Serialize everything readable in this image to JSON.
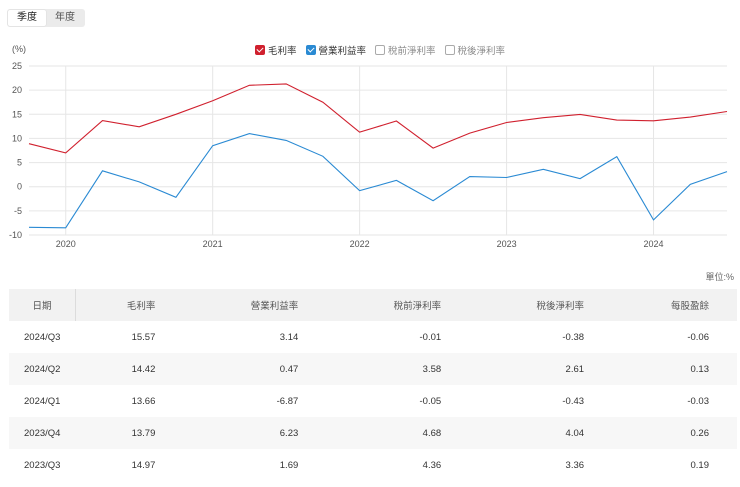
{
  "tabs": [
    {
      "label": "季度",
      "active": true
    },
    {
      "label": "年度",
      "active": false
    }
  ],
  "chart_unit": "(%)",
  "legend": [
    {
      "label": "毛利率",
      "checked": true,
      "color": "#d0202e"
    },
    {
      "label": "營業利益率",
      "checked": true,
      "color": "#2a8ad3"
    },
    {
      "label": "稅前淨利率",
      "checked": false,
      "color": "#aaaaaa"
    },
    {
      "label": "稅後淨利率",
      "checked": false,
      "color": "#aaaaaa"
    }
  ],
  "chart_data": {
    "type": "line",
    "x_ticks": [
      "2020",
      "2021",
      "2022",
      "2023",
      "2024"
    ],
    "x": [
      "2019/Q4",
      "2020/Q1",
      "2020/Q2",
      "2020/Q3",
      "2020/Q4",
      "2021/Q1",
      "2021/Q2",
      "2021/Q3",
      "2021/Q4",
      "2022/Q1",
      "2022/Q2",
      "2022/Q3",
      "2022/Q4",
      "2023/Q1",
      "2023/Q2",
      "2023/Q3",
      "2023/Q4",
      "2024/Q1",
      "2024/Q2",
      "2024/Q3"
    ],
    "ylim": [
      -10,
      25
    ],
    "y_ticks": [
      -10,
      -5,
      0,
      5,
      10,
      15,
      20,
      25
    ],
    "series": [
      {
        "name": "毛利率",
        "color": "#d0202e",
        "values": [
          8.9,
          7.0,
          13.7,
          12.4,
          15.0,
          17.8,
          21.0,
          21.3,
          17.5,
          11.3,
          13.6,
          8.0,
          11.1,
          13.3,
          14.3,
          14.97,
          13.79,
          13.66,
          14.42,
          15.57
        ]
      },
      {
        "name": "營業利益率",
        "color": "#2a8ad3",
        "values": [
          -8.4,
          -8.5,
          3.3,
          1.0,
          -2.2,
          8.5,
          11.0,
          9.6,
          6.3,
          -0.8,
          1.3,
          -2.9,
          2.1,
          1.9,
          3.6,
          1.69,
          6.23,
          -6.87,
          0.47,
          3.14
        ]
      }
    ],
    "grid": true
  },
  "table_unit": "單位:%",
  "table": {
    "headers": [
      "日期",
      "毛利率",
      "營業利益率",
      "稅前淨利率",
      "稅後淨利率",
      "每股盈餘"
    ],
    "rows": [
      [
        "2024/Q3",
        "15.57",
        "3.14",
        "-0.01",
        "-0.38",
        "-0.06"
      ],
      [
        "2024/Q2",
        "14.42",
        "0.47",
        "3.58",
        "2.61",
        "0.13"
      ],
      [
        "2024/Q1",
        "13.66",
        "-6.87",
        "-0.05",
        "-0.43",
        "-0.03"
      ],
      [
        "2023/Q4",
        "13.79",
        "6.23",
        "4.68",
        "4.04",
        "0.26"
      ],
      [
        "2023/Q3",
        "14.97",
        "1.69",
        "4.36",
        "3.36",
        "0.19"
      ]
    ]
  }
}
